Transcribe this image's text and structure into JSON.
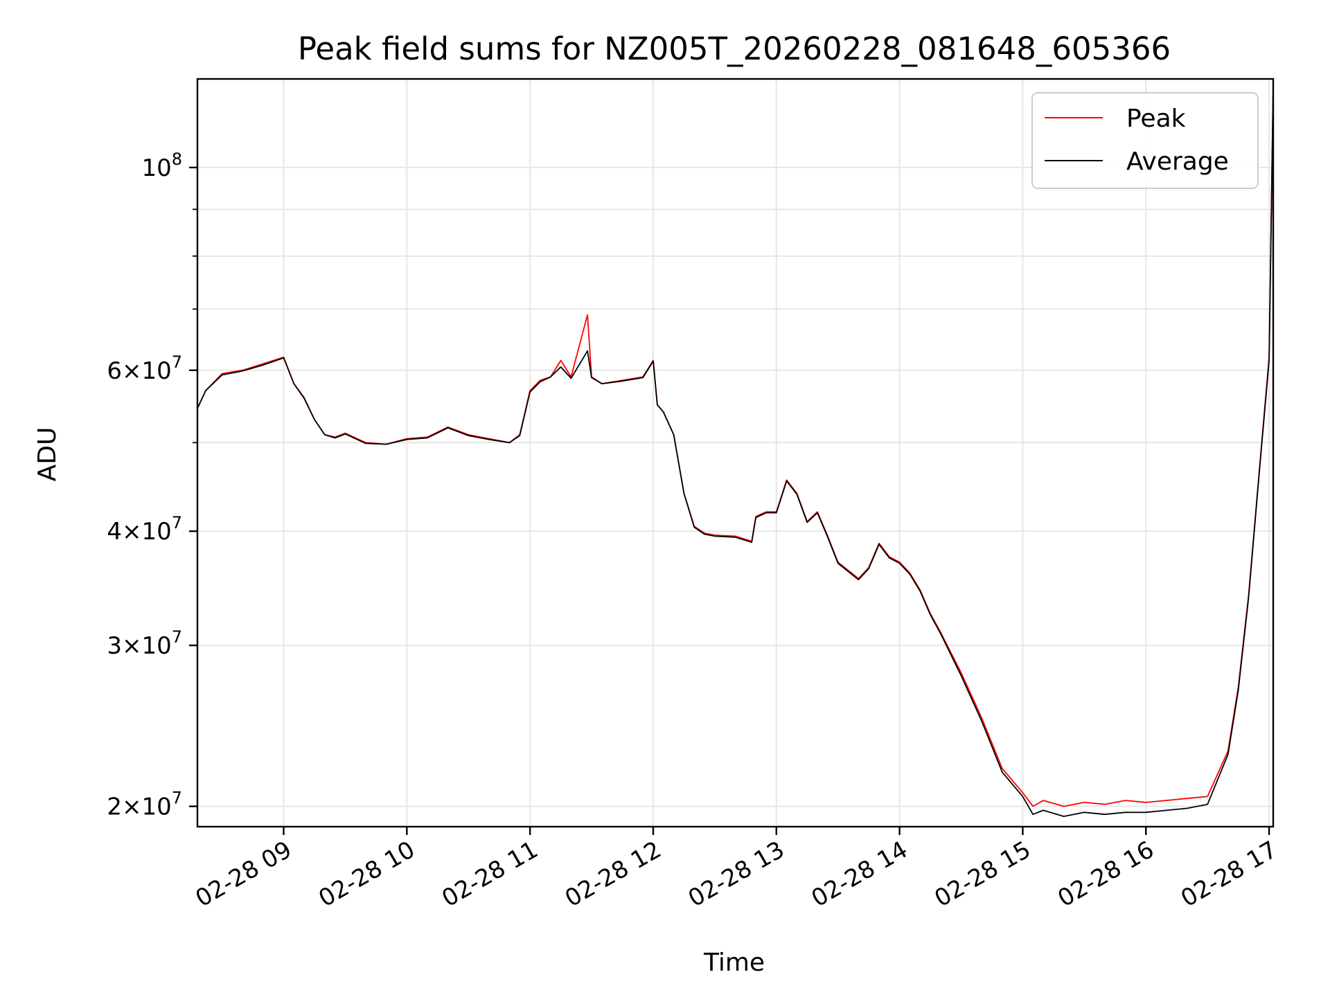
{
  "chart_data": {
    "type": "line",
    "title": "Peak field sums for NZ005T_20260228_081648_605366",
    "xlabel": "Time",
    "ylabel": "ADU",
    "yscale": "log",
    "grid": true,
    "legend_position": "top-right",
    "xlim": [
      "2026-02-28 08:18",
      "2026-02-28 17:02"
    ],
    "ylim": [
      19000000,
      125000000
    ],
    "x_ticks": [
      "02-28 09",
      "02-28 10",
      "02-28 11",
      "02-28 12",
      "02-28 13",
      "02-28 14",
      "02-28 15",
      "02-28 16",
      "02-28 17"
    ],
    "y_ticks": [
      {
        "value": 100000000,
        "base": "10",
        "exp": "8",
        "mantissa": ""
      },
      {
        "value": 60000000,
        "base": "10",
        "exp": "7",
        "mantissa": "6"
      },
      {
        "value": 40000000,
        "base": "10",
        "exp": "7",
        "mantissa": "4"
      },
      {
        "value": 30000000,
        "base": "10",
        "exp": "7",
        "mantissa": "3"
      },
      {
        "value": 20000000,
        "base": "10",
        "exp": "7",
        "mantissa": "2"
      }
    ],
    "y_minor_ticks": [
      50000000,
      70000000,
      80000000,
      90000000
    ],
    "series": [
      {
        "name": "Peak",
        "color": "#ff0000",
        "x": [
          "08:18",
          "08:22",
          "08:30",
          "08:40",
          "08:50",
          "09:00",
          "09:05",
          "09:10",
          "09:15",
          "09:20",
          "09:25",
          "09:30",
          "09:40",
          "09:50",
          "10:00",
          "10:10",
          "10:20",
          "10:30",
          "10:40",
          "10:50",
          "10:55",
          "11:00",
          "11:05",
          "11:10",
          "11:15",
          "11:20",
          "11:28",
          "11:30",
          "11:35",
          "11:45",
          "11:55",
          "12:00",
          "12:02",
          "12:05",
          "12:10",
          "12:15",
          "12:20",
          "12:25",
          "12:30",
          "12:40",
          "12:48",
          "12:50",
          "12:55",
          "13:00",
          "13:05",
          "13:10",
          "13:15",
          "13:20",
          "13:25",
          "13:30",
          "13:40",
          "13:45",
          "13:50",
          "13:55",
          "14:00",
          "14:05",
          "14:10",
          "14:15",
          "14:20",
          "14:30",
          "14:40",
          "14:50",
          "15:00",
          "15:05",
          "15:10",
          "15:20",
          "15:30",
          "15:40",
          "15:50",
          "16:00",
          "16:10",
          "16:20",
          "16:30",
          "16:40",
          "16:45",
          "16:50",
          "16:55",
          "17:00",
          "17:02"
        ],
        "values": [
          54500000,
          57000000,
          59500000,
          60000000,
          61000000,
          62000000,
          58000000,
          56000000,
          53000000,
          51000000,
          50700000,
          51200000,
          50000000,
          49800000,
          50500000,
          50700000,
          52000000,
          51000000,
          50500000,
          50000000,
          51000000,
          57000000,
          58500000,
          59000000,
          61500000,
          59000000,
          69000000,
          59000000,
          58000000,
          58500000,
          59000000,
          61500000,
          55000000,
          54000000,
          51000000,
          44000000,
          40500000,
          39800000,
          39600000,
          39500000,
          39000000,
          41500000,
          42000000,
          42000000,
          45500000,
          44000000,
          41000000,
          42000000,
          39500000,
          37000000,
          35500000,
          36500000,
          38800000,
          37500000,
          37000000,
          36000000,
          34500000,
          32500000,
          31000000,
          28000000,
          25000000,
          22000000,
          20700000,
          20000000,
          20300000,
          20000000,
          20200000,
          20100000,
          20300000,
          20200000,
          20300000,
          20400000,
          20500000,
          23000000,
          27000000,
          34000000,
          46000000,
          62000000,
          123000000
        ]
      },
      {
        "name": "Average",
        "color": "#000000",
        "x": [
          "08:18",
          "08:22",
          "08:30",
          "08:40",
          "08:50",
          "09:00",
          "09:05",
          "09:10",
          "09:15",
          "09:20",
          "09:25",
          "09:30",
          "09:40",
          "09:50",
          "10:00",
          "10:10",
          "10:20",
          "10:30",
          "10:40",
          "10:50",
          "10:55",
          "11:00",
          "11:05",
          "11:10",
          "11:15",
          "11:20",
          "11:28",
          "11:30",
          "11:35",
          "11:45",
          "11:55",
          "12:00",
          "12:02",
          "12:05",
          "12:10",
          "12:15",
          "12:20",
          "12:25",
          "12:30",
          "12:40",
          "12:48",
          "12:50",
          "12:55",
          "13:00",
          "13:05",
          "13:10",
          "13:15",
          "13:20",
          "13:25",
          "13:30",
          "13:40",
          "13:45",
          "13:50",
          "13:55",
          "14:00",
          "14:05",
          "14:10",
          "14:15",
          "14:20",
          "14:30",
          "14:40",
          "14:50",
          "15:00",
          "15:05",
          "15:10",
          "15:20",
          "15:30",
          "15:40",
          "15:50",
          "16:00",
          "16:10",
          "16:20",
          "16:30",
          "16:40",
          "16:45",
          "16:50",
          "16:55",
          "17:00",
          "17:02"
        ],
        "values": [
          54500000,
          57000000,
          59300000,
          59900000,
          60800000,
          61900000,
          58000000,
          55900000,
          53000000,
          51000000,
          50600000,
          51100000,
          49900000,
          49800000,
          50400000,
          50600000,
          51900000,
          50900000,
          50400000,
          50000000,
          50900000,
          56800000,
          58300000,
          59000000,
          60500000,
          58800000,
          63000000,
          58900000,
          58000000,
          58400000,
          58900000,
          61400000,
          55000000,
          54000000,
          51000000,
          44000000,
          40400000,
          39700000,
          39500000,
          39400000,
          38900000,
          41400000,
          41900000,
          41900000,
          45400000,
          43900000,
          40900000,
          41900000,
          39400000,
          36900000,
          35400000,
          36400000,
          38700000,
          37400000,
          36900000,
          35900000,
          34400000,
          32400000,
          30900000,
          27800000,
          24800000,
          21800000,
          20500000,
          19600000,
          19800000,
          19500000,
          19700000,
          19600000,
          19700000,
          19700000,
          19800000,
          19900000,
          20100000,
          22800000,
          26800000,
          33800000,
          45800000,
          61500000,
          122000000
        ]
      }
    ]
  }
}
